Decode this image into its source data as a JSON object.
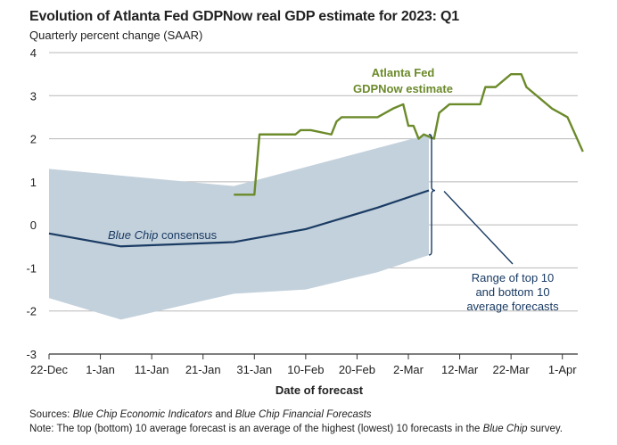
{
  "header": {
    "title": "Evolution of Atlanta Fed GDPNow real GDP estimate for 2023: Q1",
    "subtitle": "Quarterly percent change (SAAR)"
  },
  "footer": {
    "sources_label": "Sources:",
    "sources_src1": "Blue Chip Economic Indicators",
    "sources_and": "and",
    "sources_src2": "Blue Chip Financial Forecasts",
    "note_label": "Note:",
    "note_text": "The top (bottom) 10 average forecast is an average of the highest (lowest) 10 forecasts in the",
    "note_italic": "Blue Chip",
    "note_end": "survey."
  },
  "colors": {
    "gdpnow": "#6b8a2a",
    "consensus": "#1a3b63",
    "band": "#c3d1dc",
    "bracket": "#1a3b63",
    "grid": "#b8b8b8",
    "range_text": "#1a3b63"
  },
  "chart_data": {
    "type": "line",
    "title": "Evolution of Atlanta Fed GDPNow real GDP estimate for 2023: Q1",
    "subtitle": "Quarterly percent change (SAAR)",
    "xlabel": "Date of forecast",
    "ylabel": "",
    "ylim": [
      -3,
      4
    ],
    "yticks": [
      -3,
      -2,
      -1,
      0,
      1,
      2,
      3,
      4
    ],
    "xlim": [
      "2022-12-22",
      "2023-04-04"
    ],
    "xticks": [
      "22-Dec",
      "1-Jan",
      "11-Jan",
      "21-Jan",
      "31-Jan",
      "10-Feb",
      "20-Feb",
      "2-Mar",
      "12-Mar",
      "22-Mar",
      "1-Apr"
    ],
    "grid": "horizontal",
    "annotations": {
      "gdpnow_line1": "Atlanta Fed",
      "gdpnow_line2": "GDPNow estimate",
      "consensus_prefix": "Blue Chip",
      "consensus_suffix": "consensus",
      "range_line1": "Range of top 10",
      "range_line2": "and bottom 10",
      "range_line3": "average forecasts"
    },
    "series": [
      {
        "name": "Atlanta Fed GDPNow estimate",
        "type": "step",
        "points": [
          [
            "2023-01-27",
            0.7
          ],
          [
            "2023-01-31",
            0.7
          ],
          [
            "2023-02-01",
            2.1
          ],
          [
            "2023-02-08",
            2.1
          ],
          [
            "2023-02-09",
            2.2
          ],
          [
            "2023-02-11",
            2.2
          ],
          [
            "2023-02-15",
            2.1
          ],
          [
            "2023-02-16",
            2.4
          ],
          [
            "2023-02-17",
            2.5
          ],
          [
            "2023-02-24",
            2.5
          ],
          [
            "2023-02-27",
            2.7
          ],
          [
            "2023-03-01",
            2.8
          ],
          [
            "2023-03-02",
            2.3
          ],
          [
            "2023-03-03",
            2.3
          ],
          [
            "2023-03-04",
            2.0
          ],
          [
            "2023-03-05",
            2.1
          ],
          [
            "2023-03-07",
            2.0
          ],
          [
            "2023-03-08",
            2.6
          ],
          [
            "2023-03-10",
            2.8
          ],
          [
            "2023-03-16",
            2.8
          ],
          [
            "2023-03-17",
            3.2
          ],
          [
            "2023-03-19",
            3.2
          ],
          [
            "2023-03-21",
            3.4
          ],
          [
            "2023-03-22",
            3.5
          ],
          [
            "2023-03-24",
            3.5
          ],
          [
            "2023-03-25",
            3.2
          ],
          [
            "2023-03-30",
            2.7
          ],
          [
            "2023-04-02",
            2.5
          ],
          [
            "2023-04-05",
            1.7
          ]
        ]
      },
      {
        "name": "Blue Chip consensus",
        "type": "line",
        "points": [
          [
            "2022-12-22",
            -0.2
          ],
          [
            "2023-01-05",
            -0.5
          ],
          [
            "2023-01-27",
            -0.4
          ],
          [
            "2023-02-10",
            -0.1
          ],
          [
            "2023-02-24",
            0.4
          ],
          [
            "2023-03-06",
            0.8
          ]
        ]
      },
      {
        "name": "Range of top 10 and bottom 10 average forecasts",
        "type": "band",
        "upper": [
          [
            "2022-12-22",
            1.3
          ],
          [
            "2023-01-27",
            0.9
          ],
          [
            "2023-03-06",
            2.1
          ]
        ],
        "lower": [
          [
            "2022-12-22",
            -1.7
          ],
          [
            "2023-01-05",
            -2.2
          ],
          [
            "2023-01-27",
            -1.6
          ],
          [
            "2023-02-10",
            -1.5
          ],
          [
            "2023-02-24",
            -1.1
          ],
          [
            "2023-03-06",
            -0.7
          ]
        ]
      }
    ]
  }
}
